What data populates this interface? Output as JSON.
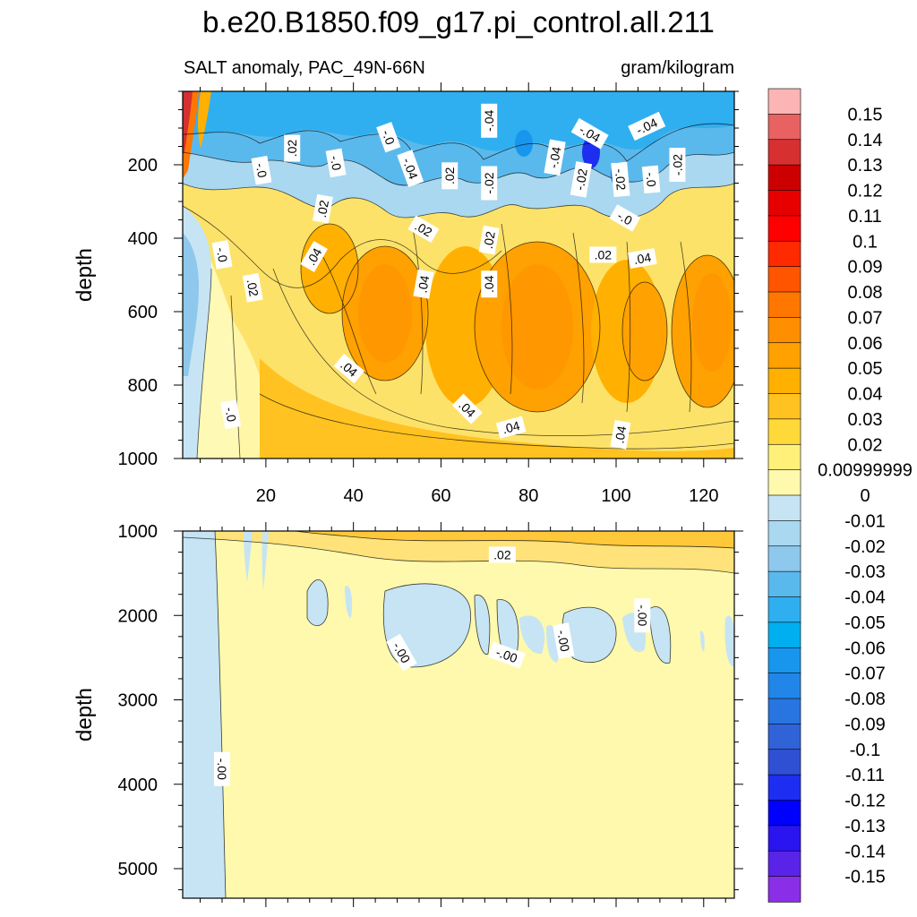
{
  "chart_data": {
    "type": "heatmap",
    "title": "b.e20.B1850.f09_g17.pi_control.all.211",
    "variable_label": "SALT anomaly, PAC_49N-66N",
    "units_label": "gram/kilogram",
    "x": {
      "label": "",
      "range": [
        1,
        127
      ],
      "ticks": [
        20,
        40,
        60,
        80,
        100,
        120
      ],
      "tick_labels": [
        "20",
        "40",
        "60",
        "80",
        "100",
        "120"
      ]
    },
    "panels": [
      {
        "name": "upper",
        "ylabel": "depth",
        "ylim": [
          0,
          1000
        ],
        "y_inverted": true,
        "y_ticks": [
          200,
          400,
          600,
          800,
          1000
        ],
        "y_tick_labels": [
          "200",
          "400",
          "600",
          "800",
          "1000"
        ],
        "contour_labels": [
          {
            "text": ".02",
            "x": 26,
            "y": 155,
            "angle": -90
          },
          {
            "text": "-.0",
            "x": 19,
            "y": 215,
            "angle": 80
          },
          {
            "text": "-.0",
            "x": 36,
            "y": 195,
            "angle": 80
          },
          {
            "text": "-.0",
            "x": 48,
            "y": 125,
            "angle": 70
          },
          {
            "text": "-.04",
            "x": 53,
            "y": 210,
            "angle": 70
          },
          {
            "text": ".02",
            "x": 33,
            "y": 320,
            "angle": -80
          },
          {
            "text": ".04",
            "x": 31,
            "y": 450,
            "angle": -60
          },
          {
            "text": ".02",
            "x": 56,
            "y": 375,
            "angle": 30
          },
          {
            "text": ".02",
            "x": 62,
            "y": 230,
            "angle": -90
          },
          {
            "text": "-.04",
            "x": 71,
            "y": 80,
            "angle": -90
          },
          {
            "text": "-.02",
            "x": 71,
            "y": 250,
            "angle": -90
          },
          {
            "text": ".02",
            "x": 71,
            "y": 405,
            "angle": -80
          },
          {
            "text": ".04",
            "x": 56,
            "y": 525,
            "angle": -80
          },
          {
            "text": ".04",
            "x": 71,
            "y": 525,
            "angle": -90
          },
          {
            "text": "-.04",
            "x": 86,
            "y": 180,
            "angle": -80
          },
          {
            "text": "-.02",
            "x": 92,
            "y": 240,
            "angle": -80
          },
          {
            "text": "-.04",
            "x": 94,
            "y": 115,
            "angle": 30
          },
          {
            "text": "-.04",
            "x": 107,
            "y": 95,
            "angle": -25
          },
          {
            "text": "-.02",
            "x": 101,
            "y": 240,
            "angle": 85
          },
          {
            "text": "-.0",
            "x": 102,
            "y": 345,
            "angle": 30
          },
          {
            "text": "-.0",
            "x": 108,
            "y": 240,
            "angle": 85
          },
          {
            "text": "-.02",
            "x": 114,
            "y": 200,
            "angle": -90
          },
          {
            "text": ".02",
            "x": 97,
            "y": 445,
            "angle": 0
          },
          {
            "text": ".04",
            "x": 106,
            "y": 455,
            "angle": -10
          },
          {
            "text": "-.0",
            "x": 10,
            "y": 445,
            "angle": 80
          },
          {
            "text": ".02",
            "x": 17,
            "y": 535,
            "angle": 80
          },
          {
            "text": ".04",
            "x": 39,
            "y": 755,
            "angle": 40
          },
          {
            "text": ".04",
            "x": 66,
            "y": 865,
            "angle": 45
          },
          {
            "text": ".04",
            "x": 76,
            "y": 915,
            "angle": -15
          },
          {
            "text": ".04",
            "x": 101,
            "y": 935,
            "angle": -80
          },
          {
            "text": "-.0",
            "x": 12,
            "y": 880,
            "angle": 80
          }
        ]
      },
      {
        "name": "lower",
        "ylabel": "depth",
        "ylim": [
          1000,
          5350
        ],
        "y_inverted": true,
        "y_ticks": [
          1000,
          2000,
          3000,
          4000,
          5000
        ],
        "y_tick_labels": [
          "1000",
          "2000",
          "3000",
          "4000",
          "5000"
        ],
        "contour_labels": [
          {
            "text": ".02",
            "x": 74,
            "y": 1280,
            "angle": 0
          },
          {
            "text": "-.00",
            "x": 51,
            "y": 2440,
            "angle": 60
          },
          {
            "text": "-.00",
            "x": 75,
            "y": 2470,
            "angle": 20
          },
          {
            "text": "-.00",
            "x": 88,
            "y": 2300,
            "angle": 80
          },
          {
            "text": "-.00",
            "x": 106,
            "y": 2000,
            "angle": 90
          },
          {
            "text": "-.00",
            "x": 10,
            "y": 3820,
            "angle": 90
          }
        ]
      }
    ],
    "colorbar": {
      "levels": [
        "0.15",
        "0.14",
        "0.13",
        "0.12",
        "0.11",
        "0.1",
        "0.09",
        "0.08",
        "0.07",
        "0.06",
        "0.05",
        "0.04",
        "0.03",
        "0.02",
        "0.00999999",
        "0",
        "-0.01",
        "-0.02",
        "-0.03",
        "-0.04",
        "-0.05",
        "-0.06",
        "-0.07",
        "-0.08",
        "-0.09",
        "-0.1",
        "-0.11",
        "-0.12",
        "-0.13",
        "-0.14",
        "-0.15"
      ],
      "colors": [
        "#fcb4b4",
        "#e86262",
        "#d63030",
        "#cc0000",
        "#e60000",
        "#ff0000",
        "#ff2a00",
        "#ff5500",
        "#ff7700",
        "#ff8e00",
        "#ffa100",
        "#ffb000",
        "#ffc220",
        "#ffd83a",
        "#fff07a",
        "#fff9ad",
        "#c6e4f3",
        "#a9d8f0",
        "#8ec8ec",
        "#5ab9ec",
        "#2fafef",
        "#00aff0",
        "#1896ee",
        "#2286e8",
        "#2874e0",
        "#3063d8",
        "#3050d4",
        "#1e2ef0",
        "#0000ff",
        "#2a14f0",
        "#5a24e8",
        "#8a2ee8"
      ]
    }
  }
}
